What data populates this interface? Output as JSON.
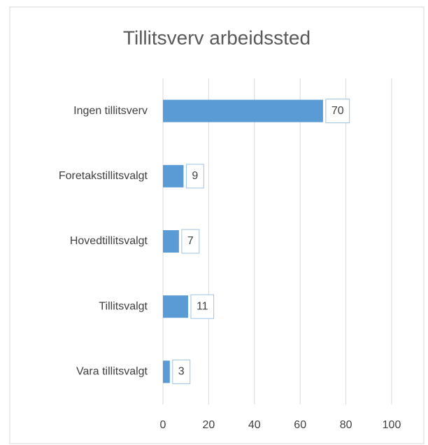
{
  "chart_data": {
    "type": "barh",
    "title": "Tillitsverv arbeidssted",
    "categories": [
      "Ingen tillitsverv",
      "Foretakstillitsvalgt",
      "Hovedtillitsvalgt",
      "Tillitsvalgt",
      "Vara tillitsvalgt"
    ],
    "values": [
      70,
      9,
      7,
      11,
      3
    ],
    "color": "#5b9bd5",
    "xlim": [
      0,
      100
    ],
    "xticks": [
      0,
      20,
      40,
      60,
      80,
      100
    ],
    "grid": true
  }
}
